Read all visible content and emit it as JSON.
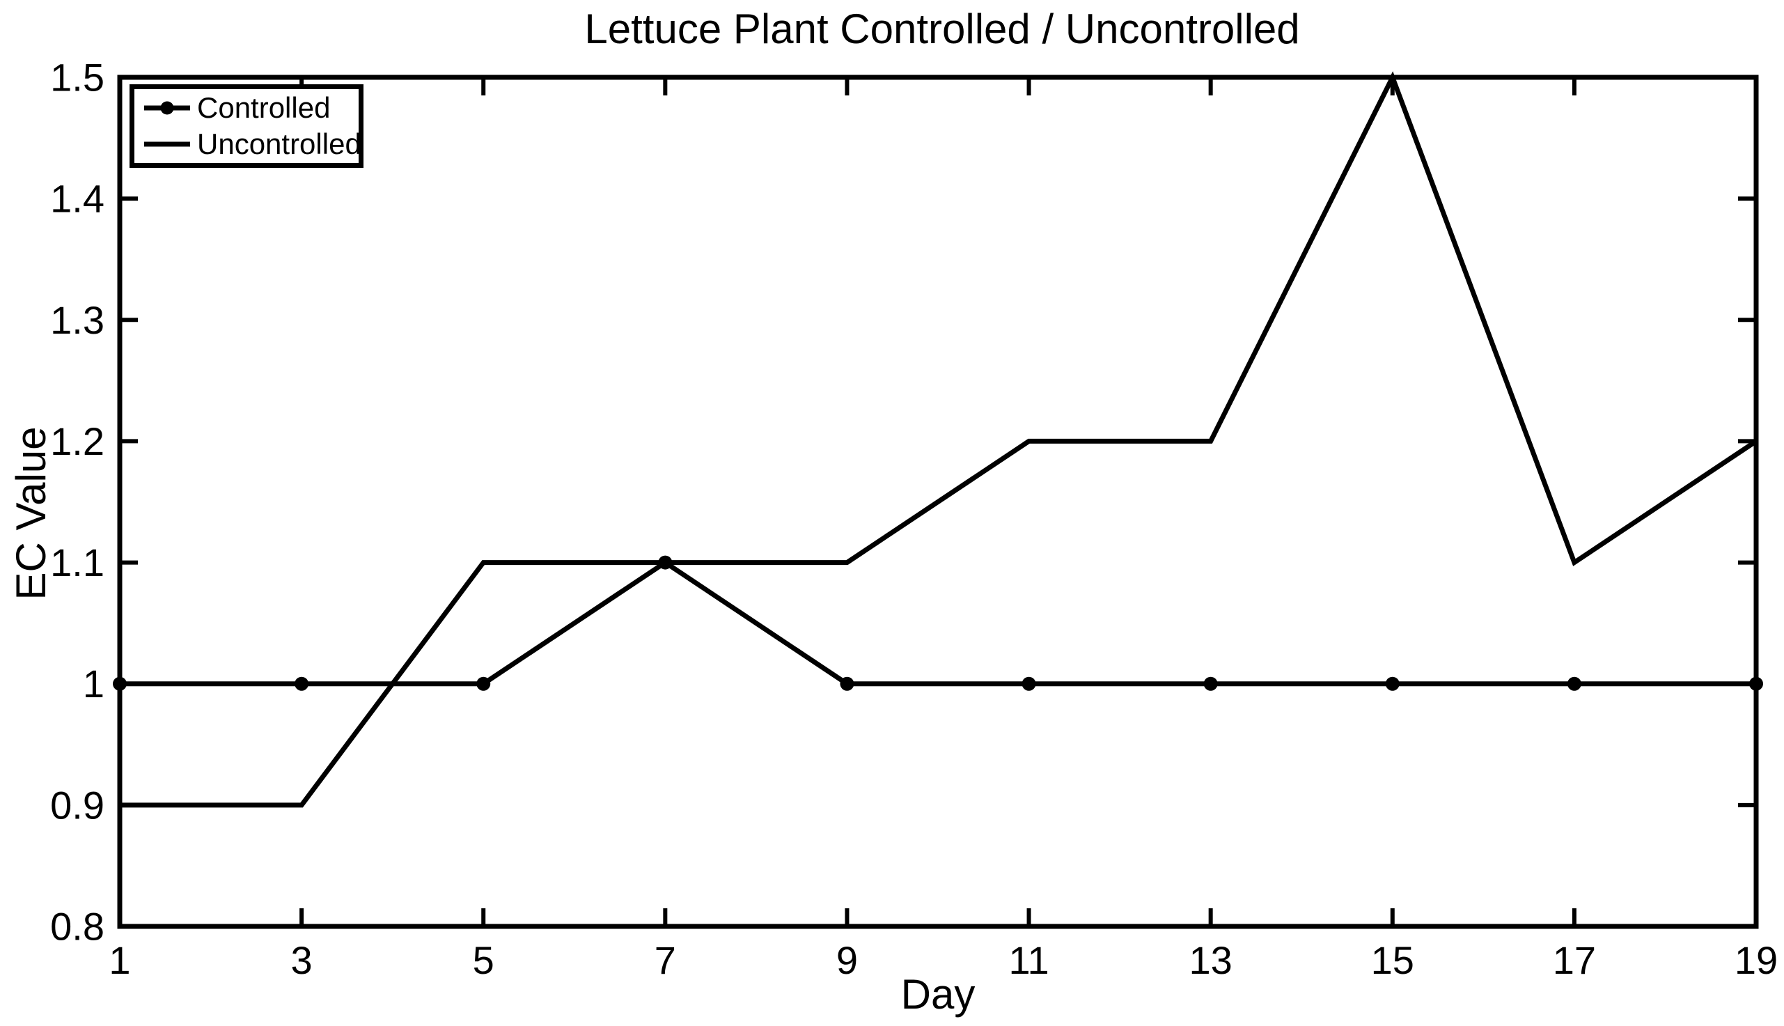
{
  "chart_data": {
    "type": "line",
    "title": "Lettuce Plant Controlled / Uncontrolled",
    "xlabel": "Day",
    "ylabel": "EC Value",
    "x": [
      1,
      3,
      5,
      7,
      9,
      11,
      13,
      15,
      17,
      19
    ],
    "series": [
      {
        "name": "Controlled",
        "values": [
          1,
          1,
          1,
          1.1,
          1,
          1,
          1,
          1,
          1,
          1
        ],
        "marker": "dot",
        "color": "#000000"
      },
      {
        "name": "Uncontrolled",
        "values": [
          0.9,
          0.9,
          1.1,
          1.1,
          1.1,
          1.2,
          1.2,
          1.5,
          1.1,
          1.2
        ],
        "marker": "none",
        "color": "#000000"
      }
    ],
    "xlim": [
      1,
      19
    ],
    "ylim": [
      0.8,
      1.5
    ],
    "x_tick_labels": [
      "1",
      "3",
      "5",
      "7",
      "9",
      "11",
      "13",
      "15",
      "17",
      "19"
    ],
    "y_tick_values": [
      0.8,
      0.9,
      1,
      1.1,
      1.2,
      1.3,
      1.4,
      1.5
    ],
    "y_tick_labels": [
      "0.8",
      "0.9",
      "1",
      "1.1",
      "1.2",
      "1.3",
      "1.4",
      "1.5"
    ],
    "grid": false,
    "legend_position": "top-left",
    "axis_color": "#000000",
    "text_color": "#000000",
    "background": "#ffffff"
  }
}
